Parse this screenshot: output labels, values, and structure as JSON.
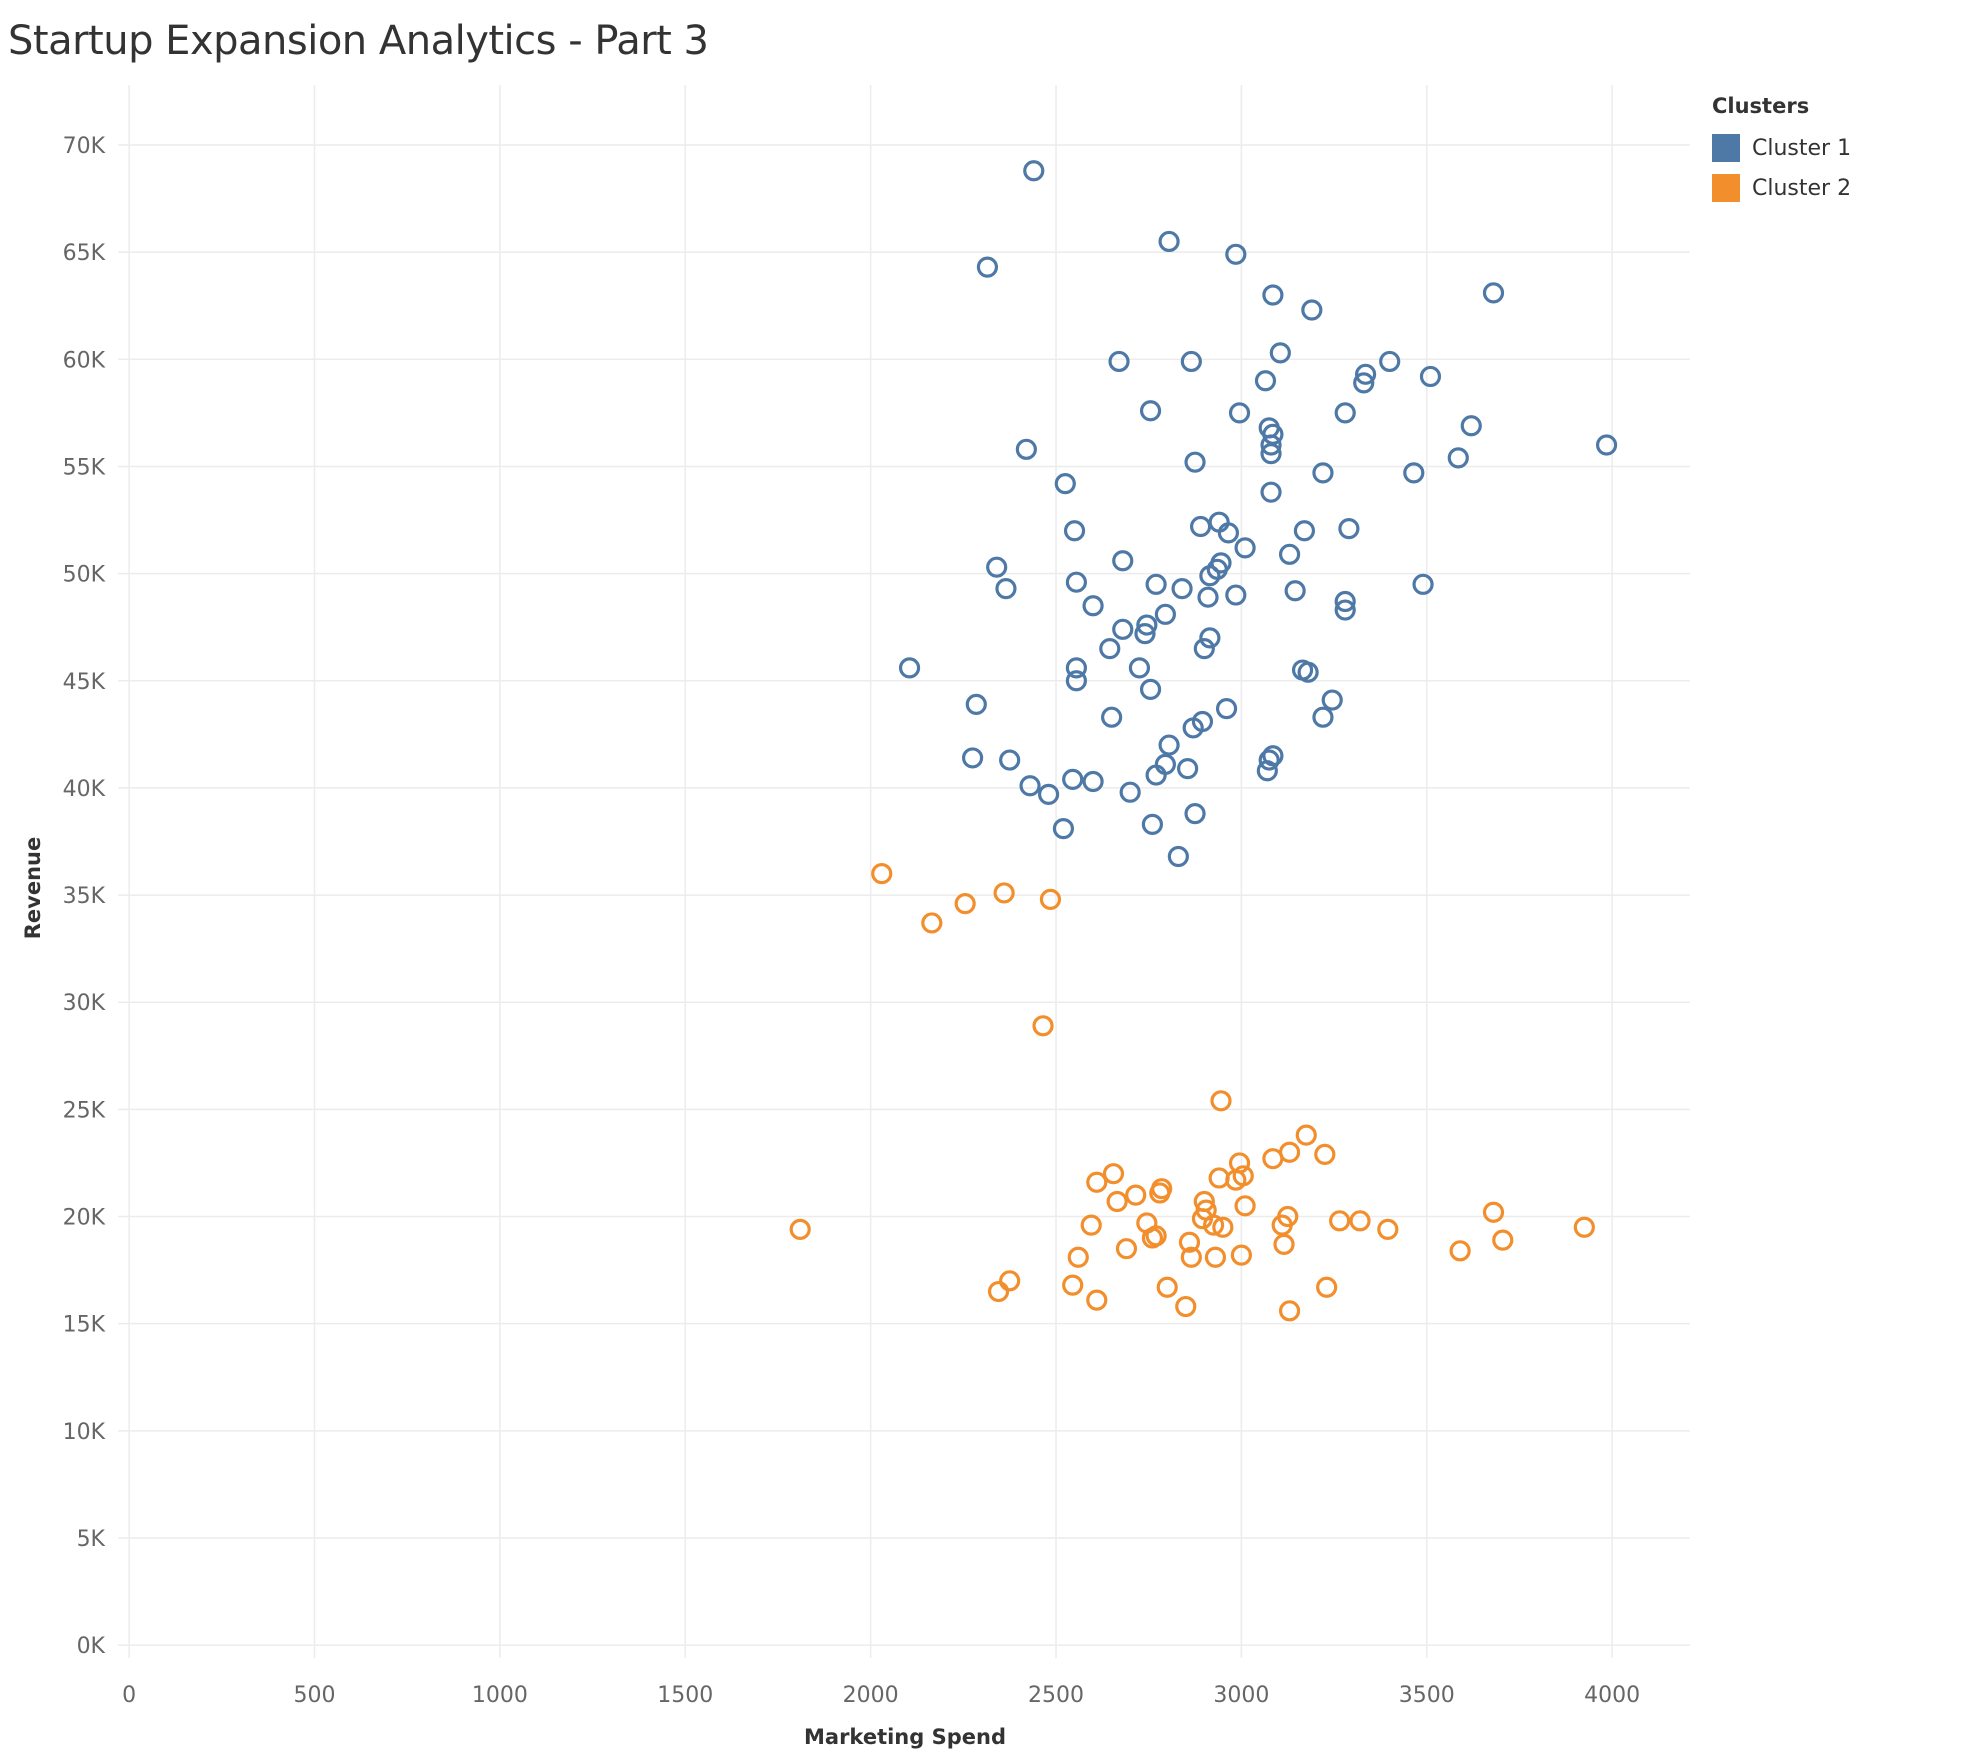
{
  "chart_data": {
    "type": "scatter",
    "title": "Startup Expansion Analytics - Part 3",
    "xlabel": "Marketing Spend",
    "ylabel": "Revenue",
    "xlim": [
      -30,
      4210
    ],
    "ylim": [
      -600,
      72800
    ],
    "x_ticks": [
      0,
      500,
      1000,
      1500,
      2000,
      2500,
      3000,
      3500,
      4000
    ],
    "y_ticks": [
      0,
      5000,
      10000,
      15000,
      20000,
      25000,
      30000,
      35000,
      40000,
      45000,
      50000,
      55000,
      60000,
      65000,
      70000
    ],
    "y_tick_labels": [
      "0K",
      "5K",
      "10K",
      "15K",
      "20K",
      "25K",
      "30K",
      "35K",
      "40K",
      "45K",
      "50K",
      "55K",
      "60K",
      "65K",
      "70K"
    ],
    "grid": true,
    "legend": {
      "title": "Clusters",
      "position": "top-right"
    },
    "series": [
      {
        "name": "Cluster 1",
        "color": "#4e79a7",
        "points": [
          [
            2440,
            68800
          ],
          [
            2805,
            65500
          ],
          [
            2985,
            64900
          ],
          [
            2315,
            64300
          ],
          [
            3085,
            63000
          ],
          [
            3680,
            63100
          ],
          [
            3190,
            62300
          ],
          [
            3105,
            60300
          ],
          [
            2670,
            59900
          ],
          [
            2865,
            59900
          ],
          [
            3400,
            59900
          ],
          [
            3335,
            59300
          ],
          [
            3510,
            59200
          ],
          [
            3065,
            59000
          ],
          [
            3330,
            58900
          ],
          [
            2755,
            57600
          ],
          [
            2995,
            57500
          ],
          [
            3280,
            57500
          ],
          [
            3620,
            56900
          ],
          [
            3075,
            56800
          ],
          [
            3085,
            56500
          ],
          [
            3080,
            56000
          ],
          [
            3985,
            56000
          ],
          [
            2420,
            55800
          ],
          [
            3080,
            55600
          ],
          [
            3585,
            55400
          ],
          [
            2875,
            55200
          ],
          [
            3220,
            54700
          ],
          [
            3465,
            54700
          ],
          [
            2525,
            54200
          ],
          [
            3080,
            53800
          ],
          [
            2890,
            52200
          ],
          [
            2940,
            52400
          ],
          [
            2550,
            52000
          ],
          [
            2965,
            51900
          ],
          [
            3170,
            52000
          ],
          [
            3290,
            52100
          ],
          [
            3010,
            51200
          ],
          [
            3130,
            50900
          ],
          [
            2680,
            50600
          ],
          [
            2340,
            50300
          ],
          [
            2945,
            50500
          ],
          [
            2935,
            50200
          ],
          [
            2915,
            49900
          ],
          [
            2555,
            49600
          ],
          [
            2770,
            49500
          ],
          [
            2840,
            49300
          ],
          [
            2365,
            49300
          ],
          [
            3145,
            49200
          ],
          [
            3490,
            49500
          ],
          [
            2985,
            49000
          ],
          [
            2910,
            48900
          ],
          [
            3280,
            48700
          ],
          [
            2600,
            48500
          ],
          [
            3280,
            48300
          ],
          [
            2795,
            48100
          ],
          [
            2680,
            47400
          ],
          [
            2745,
            47600
          ],
          [
            2740,
            47200
          ],
          [
            2915,
            47000
          ],
          [
            2645,
            46500
          ],
          [
            2900,
            46500
          ],
          [
            2105,
            45600
          ],
          [
            2555,
            45600
          ],
          [
            2725,
            45600
          ],
          [
            3165,
            45500
          ],
          [
            3180,
            45400
          ],
          [
            2555,
            45000
          ],
          [
            2755,
            44600
          ],
          [
            3245,
            44100
          ],
          [
            2285,
            43900
          ],
          [
            2960,
            43700
          ],
          [
            2650,
            43300
          ],
          [
            3220,
            43300
          ],
          [
            2895,
            43100
          ],
          [
            2870,
            42800
          ],
          [
            2805,
            42000
          ],
          [
            3085,
            41500
          ],
          [
            3075,
            41300
          ],
          [
            2275,
            41400
          ],
          [
            2375,
            41300
          ],
          [
            2795,
            41100
          ],
          [
            2855,
            40900
          ],
          [
            3070,
            40800
          ],
          [
            2770,
            40600
          ],
          [
            2545,
            40400
          ],
          [
            2600,
            40300
          ],
          [
            2430,
            40100
          ],
          [
            2480,
            39700
          ],
          [
            2700,
            39800
          ],
          [
            2875,
            38800
          ],
          [
            2520,
            38100
          ],
          [
            2760,
            38300
          ],
          [
            2830,
            36800
          ]
        ]
      },
      {
        "name": "Cluster 2",
        "color": "#f28e2b",
        "points": [
          [
            2030,
            36000
          ],
          [
            2360,
            35100
          ],
          [
            2485,
            34800
          ],
          [
            2255,
            34600
          ],
          [
            2165,
            33700
          ],
          [
            2465,
            28900
          ],
          [
            2945,
            25400
          ],
          [
            3175,
            23800
          ],
          [
            3130,
            23000
          ],
          [
            3225,
            22900
          ],
          [
            3085,
            22700
          ],
          [
            2995,
            22500
          ],
          [
            2655,
            22000
          ],
          [
            3005,
            21900
          ],
          [
            2940,
            21800
          ],
          [
            2985,
            21700
          ],
          [
            2610,
            21600
          ],
          [
            2785,
            21300
          ],
          [
            2780,
            21100
          ],
          [
            2715,
            21000
          ],
          [
            2665,
            20700
          ],
          [
            2900,
            20700
          ],
          [
            3010,
            20500
          ],
          [
            2905,
            20300
          ],
          [
            3680,
            20200
          ],
          [
            3125,
            20000
          ],
          [
            2895,
            19900
          ],
          [
            3265,
            19800
          ],
          [
            3320,
            19800
          ],
          [
            2595,
            19600
          ],
          [
            2745,
            19700
          ],
          [
            3110,
            19600
          ],
          [
            2925,
            19600
          ],
          [
            2950,
            19500
          ],
          [
            3395,
            19400
          ],
          [
            3925,
            19500
          ],
          [
            1810,
            19400
          ],
          [
            2770,
            19100
          ],
          [
            2760,
            19000
          ],
          [
            3705,
            18900
          ],
          [
            2860,
            18800
          ],
          [
            3115,
            18700
          ],
          [
            2690,
            18500
          ],
          [
            3590,
            18400
          ],
          [
            2560,
            18100
          ],
          [
            2865,
            18100
          ],
          [
            2930,
            18100
          ],
          [
            3000,
            18200
          ],
          [
            2375,
            17000
          ],
          [
            2545,
            16800
          ],
          [
            2800,
            16700
          ],
          [
            3230,
            16700
          ],
          [
            2345,
            16500
          ],
          [
            2610,
            16100
          ],
          [
            2850,
            15800
          ],
          [
            3130,
            15600
          ]
        ]
      }
    ]
  }
}
